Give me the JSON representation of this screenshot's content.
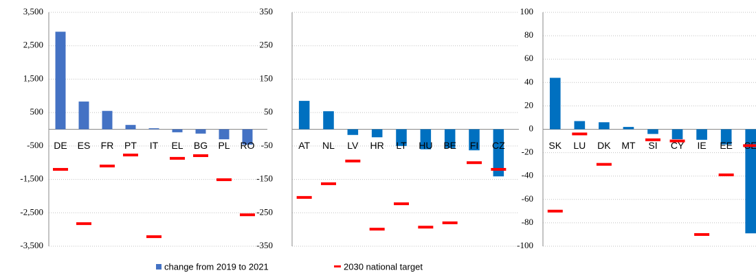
{
  "chart_data": [
    {
      "type": "bar",
      "categories": [
        "DE",
        "ES",
        "FR",
        "PT",
        "IT",
        "EL",
        "BG",
        "PL",
        "RO"
      ],
      "ylim": [
        -3500,
        3500
      ],
      "yticks": [
        {
          "value": -3500,
          "label": "-3,500"
        },
        {
          "value": -2500,
          "label": "-2,500"
        },
        {
          "value": -1500,
          "label": "-1,500"
        },
        -500,
        500,
        {
          "value": 1500,
          "label": "1,500"
        },
        {
          "value": 2500,
          "label": "2,500"
        },
        {
          "value": 3500,
          "label": "3,500"
        }
      ],
      "grid": true,
      "series": [
        {
          "name": "change from 2019 to 2021",
          "color": "#4472c4",
          "values": [
            2920,
            830,
            550,
            130,
            30,
            -90,
            -130,
            -300,
            -460
          ]
        },
        {
          "name": "2030 national target",
          "color": "#ff0000",
          "values": [
            -1200,
            -2825,
            -1100,
            -770,
            -3215,
            -870,
            -790,
            -1510,
            -2560
          ]
        }
      ]
    },
    {
      "type": "bar",
      "categories": [
        "AT",
        "NL",
        "LV",
        "HR",
        "LT",
        "HU",
        "BE",
        "FI",
        "CZ"
      ],
      "ylim": [
        -350,
        350
      ],
      "yticks": [
        -350,
        -250,
        -150,
        -50,
        50,
        150,
        250,
        350
      ],
      "grid": true,
      "series": [
        {
          "color": "#0070c0",
          "values": [
            85,
            54,
            -17,
            -24,
            -50,
            -60,
            -56,
            -63,
            -141
          ]
        },
        {
          "color": "#ff0000",
          "values": [
            -204,
            -163,
            -95,
            -299,
            -223,
            -293,
            -280,
            -100,
            -120
          ]
        }
      ]
    },
    {
      "type": "bar",
      "categories": [
        "SK",
        "LU",
        "DK",
        "MT",
        "SI",
        "CY",
        "IE",
        "EE",
        "SE"
      ],
      "ylim": [
        -100,
        100
      ],
      "yticks": [
        -100,
        -80,
        -60,
        -40,
        -20,
        0,
        20,
        40,
        60,
        80,
        100
      ],
      "grid": true,
      "series": [
        {
          "color": "#0070c0",
          "values": [
            44,
            7,
            6,
            2,
            -4,
            -8.5,
            -9,
            -13,
            -89
          ]
        },
        {
          "color": "#ff0000",
          "values": [
            -70,
            -4,
            -30,
            null,
            -9,
            -10,
            -90,
            -39,
            -14
          ]
        }
      ]
    }
  ]
}
